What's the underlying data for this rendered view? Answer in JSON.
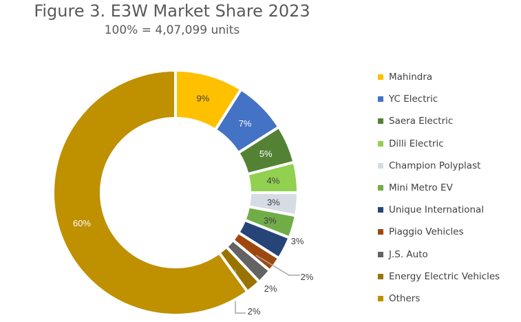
{
  "chart_data": {
    "type": "pie",
    "variant": "donut",
    "title": "Figure 3. E3W Market Share 2023",
    "subtitle": "100% = 4,07,099 units",
    "legend_position": "right",
    "categories": [
      "Mahindra",
      "YC Electric",
      "Saera Electric",
      "Dilli Electric",
      "Champion Polyplast",
      "Mini Metro EV",
      "Unique International",
      "Piaggio Vehicles",
      "J.S. Auto",
      "Energy Electric Vehicles",
      "Others"
    ],
    "values": [
      9,
      7,
      5,
      4,
      3,
      3,
      3,
      2,
      2,
      2,
      60
    ],
    "labels": [
      "9%",
      "7%",
      "5%",
      "4%",
      "3%",
      "3%",
      "3%",
      "2%",
      "2%",
      "2%",
      "60%"
    ],
    "colors": [
      "#FFC000",
      "#4472C4",
      "#548235",
      "#92D050",
      "#D6DCE4",
      "#70AD47",
      "#264478",
      "#9E480E",
      "#636363",
      "#997300",
      "#BF9000"
    ]
  }
}
